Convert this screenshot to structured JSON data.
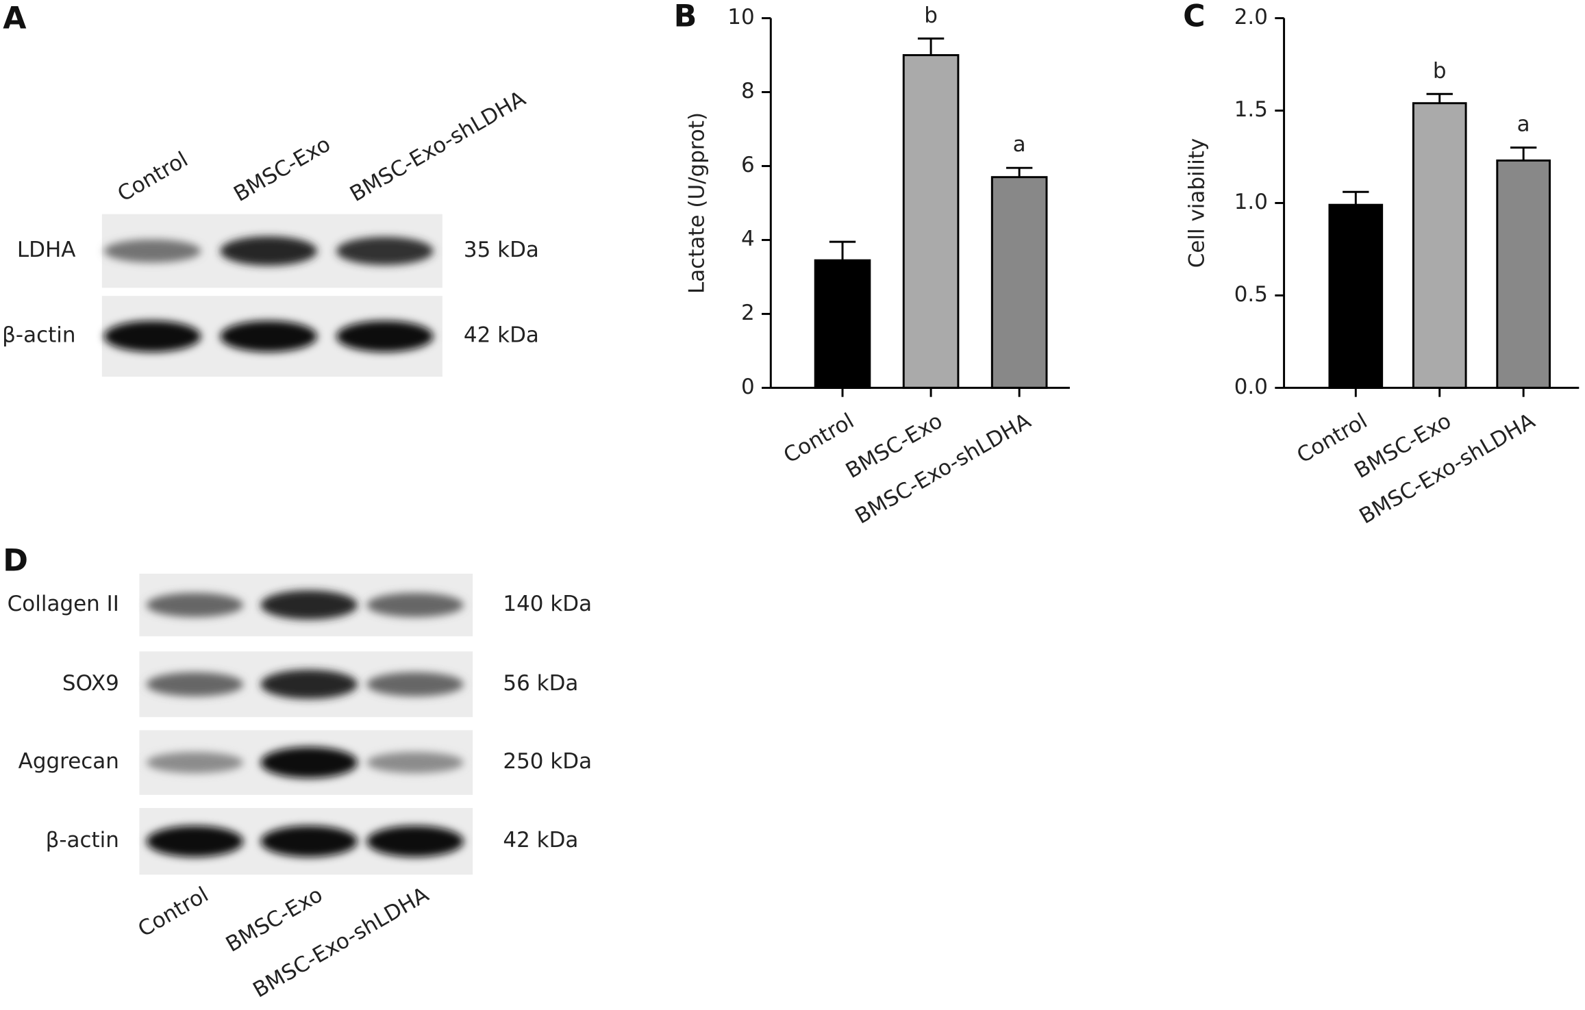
{
  "panel_a": {
    "label": "A",
    "lanes": [
      "Control",
      "BMSC-Exo",
      "BMSC-Exo-shLDHA"
    ],
    "rows": [
      {
        "protein": "LDHA",
        "size": "35 kDa"
      },
      {
        "protein": "β-actin",
        "size": "42 kDa"
      }
    ]
  },
  "panel_d": {
    "label": "D",
    "lanes": [
      "Control",
      "BMSC-Exo",
      "BMSC-Exo-shLDHA"
    ],
    "rows": [
      {
        "protein": "Collagen II",
        "size": "140 kDa"
      },
      {
        "protein": "SOX9",
        "size": "56 kDa"
      },
      {
        "protein": "Aggrecan",
        "size": "250 kDa"
      },
      {
        "protein": "β-actin",
        "size": "42 kDa"
      }
    ]
  },
  "chart_data": [
    {
      "type": "bar",
      "panel_label": "B",
      "y_label": "Lactate (U/gprot)",
      "categories": [
        "Control",
        "BMSC-Exo",
        "BMSC-Exo-shLDHA"
      ],
      "values": [
        3.45,
        9.0,
        5.7
      ],
      "errors": [
        0.5,
        0.45,
        0.25
      ],
      "labels": [
        null,
        "b",
        "a"
      ],
      "colors": [
        "#000000",
        "#aaaaaa",
        "#888888"
      ],
      "ylim": [
        0,
        10
      ],
      "yticks": [
        0,
        2,
        4,
        6,
        8,
        10
      ]
    },
    {
      "type": "bar",
      "panel_label": "C",
      "y_label": "Cell viability",
      "categories": [
        "Control",
        "BMSC-Exo",
        "BMSC-Exo-shLDHA"
      ],
      "values": [
        0.99,
        1.54,
        1.23
      ],
      "errors": [
        0.07,
        0.05,
        0.07
      ],
      "labels": [
        null,
        "b",
        "a"
      ],
      "colors": [
        "#000000",
        "#aaaaaa",
        "#888888"
      ],
      "ylim": [
        0,
        2
      ],
      "yticks": [
        {
          "value": 0,
          "label": "0.0"
        },
        {
          "value": 0.5,
          "label": "0.5"
        },
        {
          "value": 1,
          "label": "1.0"
        },
        {
          "value": 1.5,
          "label": "1.5"
        },
        {
          "value": 2,
          "label": "2.0"
        }
      ]
    }
  ]
}
